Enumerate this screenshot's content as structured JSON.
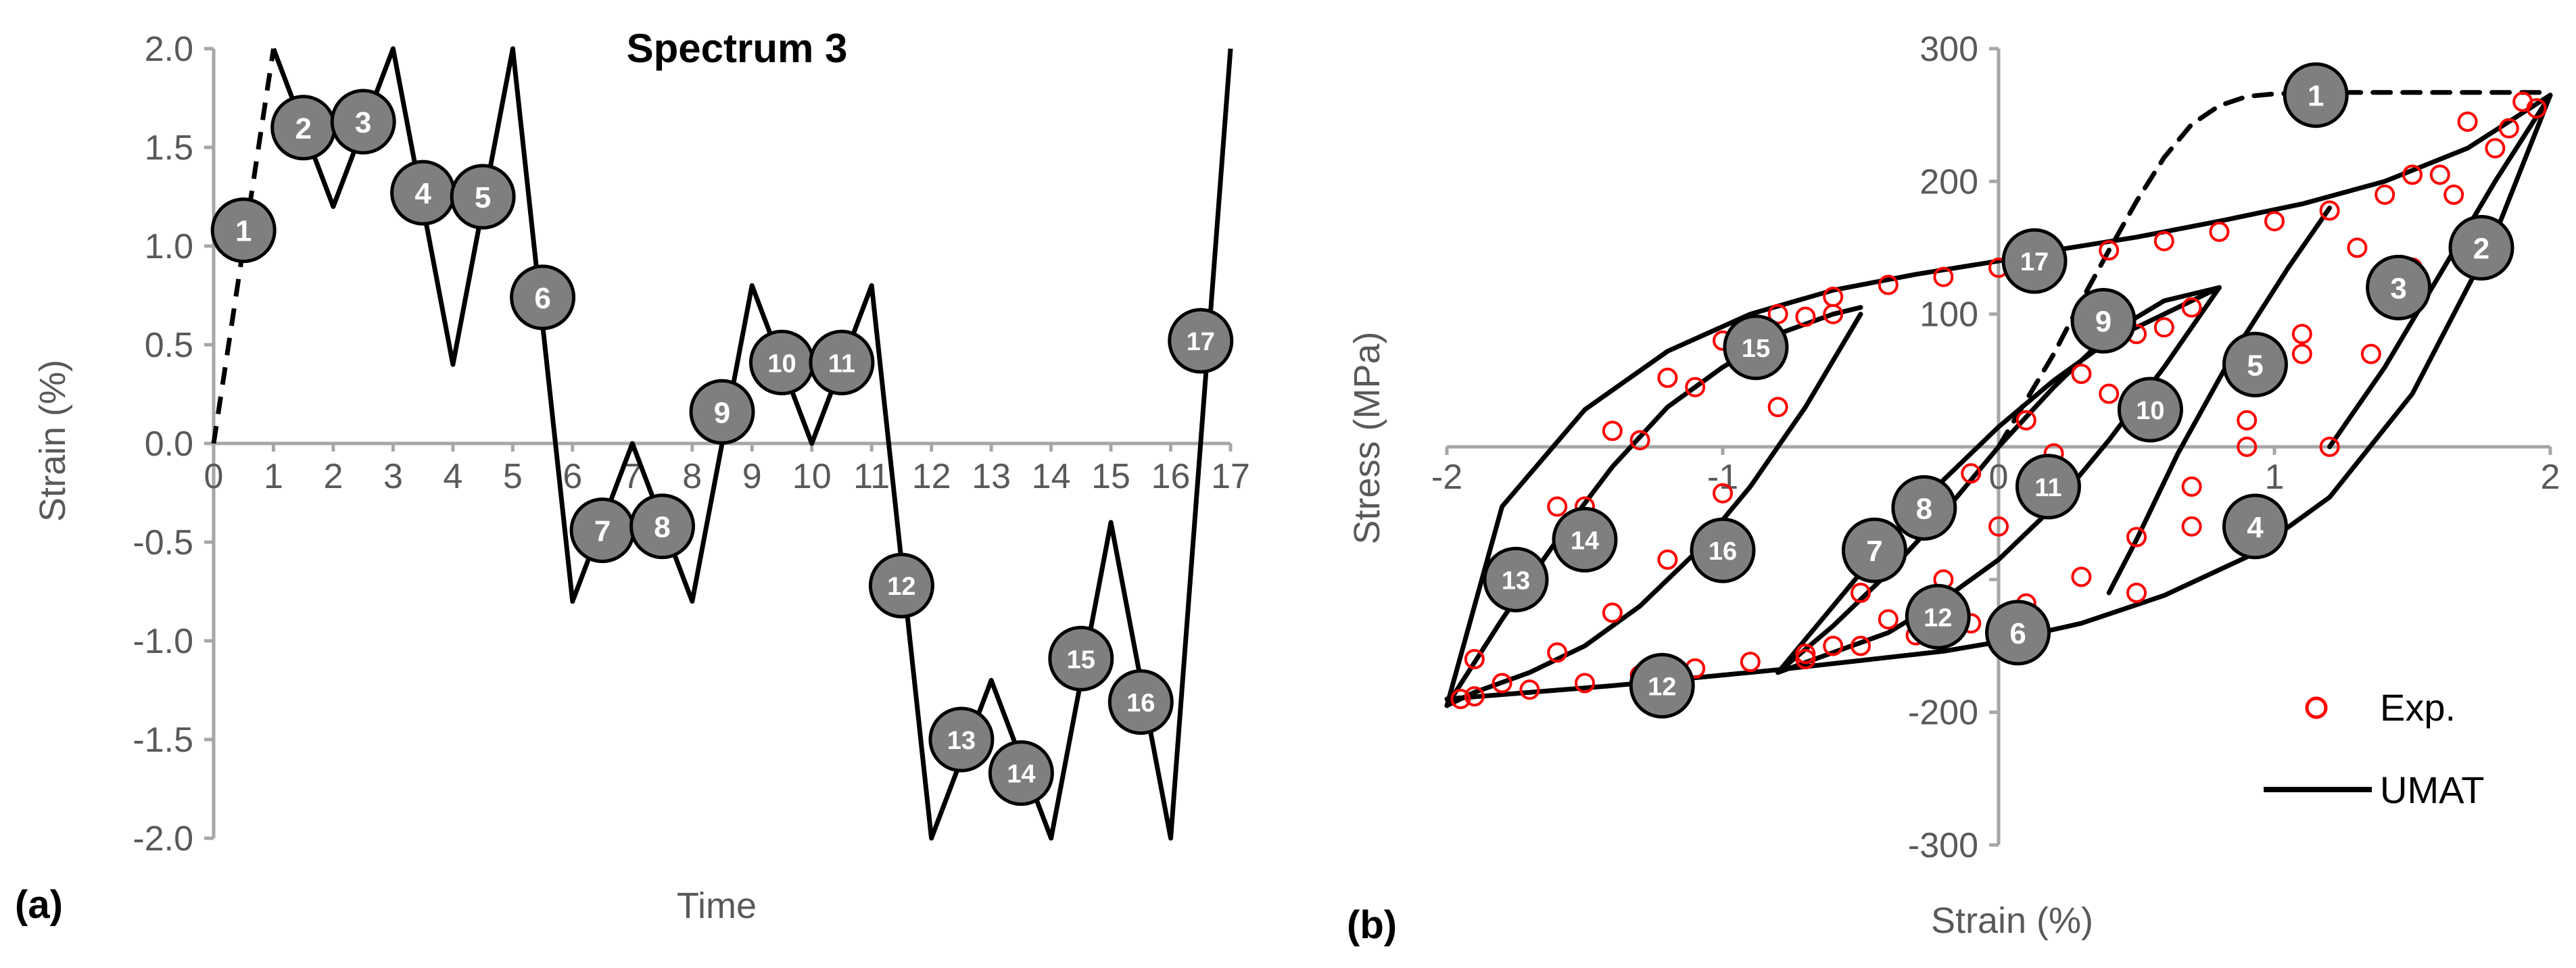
{
  "colors": {
    "axis": "#a6a6a6",
    "text": "#595959",
    "line": "#000000",
    "exp_marker": "#ff0000",
    "badge_fill": "#7f7f7f"
  },
  "chart_data": [
    {
      "panel_label": "(a)",
      "type": "line",
      "title": "Spectrum 3",
      "xlabel": "Time",
      "ylabel": "Strain (%)",
      "xlim": [
        0,
        17
      ],
      "ylim": [
        -2.0,
        2.0
      ],
      "x_ticks": [
        "0",
        "1",
        "2",
        "3",
        "4",
        "5",
        "6",
        "7",
        "8",
        "9",
        "10",
        "11",
        "12",
        "13",
        "14",
        "15",
        "16",
        "17"
      ],
      "y_ticks": [
        "2.0",
        "1.5",
        "1.0",
        "0.5",
        "0.0",
        "-0.5",
        "-1.0",
        "-1.5",
        "-2.0"
      ],
      "grid": false,
      "series": [
        {
          "style": "dashed",
          "x": [
            0,
            1
          ],
          "y": [
            0,
            2.0
          ]
        },
        {
          "style": "solid",
          "x": [
            1,
            2,
            3,
            4,
            5,
            6,
            7,
            8,
            9,
            10,
            11,
            12,
            13,
            14,
            15,
            16,
            17
          ],
          "y": [
            2.0,
            1.2,
            2.0,
            0.4,
            2.0,
            -0.8,
            0.0,
            -0.8,
            0.8,
            0.0,
            0.8,
            -2.0,
            -1.2,
            -2.0,
            -0.4,
            -2.0,
            2.0
          ]
        }
      ],
      "annotations": [
        {
          "label": "1",
          "x": 0.5,
          "y": 1.08
        },
        {
          "label": "2",
          "x": 1.5,
          "y": 1.6
        },
        {
          "label": "3",
          "x": 2.5,
          "y": 1.63
        },
        {
          "label": "4",
          "x": 3.5,
          "y": 1.27
        },
        {
          "label": "5",
          "x": 4.5,
          "y": 1.25
        },
        {
          "label": "6",
          "x": 5.5,
          "y": 0.74
        },
        {
          "label": "7",
          "x": 6.5,
          "y": -0.44
        },
        {
          "label": "8",
          "x": 7.5,
          "y": -0.42
        },
        {
          "label": "9",
          "x": 8.5,
          "y": 0.16
        },
        {
          "label": "10",
          "x": 9.5,
          "y": 0.41
        },
        {
          "label": "11",
          "x": 10.5,
          "y": 0.41
        },
        {
          "label": "12",
          "x": 11.5,
          "y": -0.72
        },
        {
          "label": "13",
          "x": 12.5,
          "y": -1.5
        },
        {
          "label": "14",
          "x": 13.5,
          "y": -1.67
        },
        {
          "label": "15",
          "x": 14.5,
          "y": -1.09
        },
        {
          "label": "16",
          "x": 15.5,
          "y": -1.31
        },
        {
          "label": "17",
          "x": 16.5,
          "y": 0.52
        }
      ]
    },
    {
      "panel_label": "(b)",
      "type": "scatter",
      "title": "",
      "xlabel": "Strain (%)",
      "ylabel": "Stress (MPa)",
      "xlim": [
        -2,
        2
      ],
      "ylim": [
        -300,
        300
      ],
      "x_ticks": [
        "-2",
        "-1",
        "0",
        "1",
        "2"
      ],
      "y_ticks": [
        "300",
        "200",
        "100",
        "-200",
        "-300"
      ],
      "grid": false,
      "legend": {
        "position": "bottom-right",
        "entries": [
          "Exp.",
          "UMAT"
        ]
      },
      "series": [
        {
          "name": "UMAT",
          "style": "dashed",
          "x": [
            0.0,
            0.1,
            0.2,
            0.3,
            0.4,
            0.5,
            0.6,
            0.7,
            0.8,
            0.9,
            1.0,
            1.2,
            1.5,
            1.8,
            2.0
          ],
          "y": [
            0,
            35,
            70,
            110,
            148,
            185,
            218,
            243,
            257,
            264,
            266,
            267,
            267,
            267,
            267
          ]
        },
        {
          "name": "UMAT",
          "style": "solid",
          "x": [
            2.0,
            1.7,
            1.4,
            1.1,
            0.8,
            0.5,
            0.2,
            0.0,
            -0.3,
            -0.6,
            -0.9,
            -1.2,
            -1.5,
            -1.8,
            -2.0
          ],
          "y": [
            265,
            225,
            200,
            183,
            170,
            158,
            148,
            140,
            130,
            118,
            100,
            72,
            28,
            -45,
            -195
          ]
        },
        {
          "name": "UMAT",
          "style": "solid",
          "x": [
            -2.0,
            -1.7,
            -1.4,
            -1.1,
            -0.8,
            -0.5,
            -0.2,
            0.0,
            0.3,
            0.6,
            0.9,
            1.2,
            1.5,
            1.8,
            2.0
          ],
          "y": [
            -190,
            -185,
            -180,
            -174,
            -168,
            -161,
            -154,
            -147,
            -133,
            -112,
            -83,
            -38,
            40,
            160,
            265
          ]
        },
        {
          "name": "UMAT",
          "style": "solid",
          "x": [
            1.2,
            1.4,
            1.6,
            1.8,
            2.0
          ],
          "y": [
            0,
            60,
            130,
            200,
            265
          ]
        },
        {
          "name": "UMAT",
          "style": "solid",
          "x": [
            0.4,
            0.5,
            0.65,
            0.85,
            1.05,
            1.2
          ],
          "y": [
            -110,
            -70,
            -5,
            70,
            135,
            180
          ]
        },
        {
          "name": "UMAT",
          "style": "solid",
          "x": [
            -0.8,
            -0.6,
            -0.4,
            -0.2,
            0.0,
            0.2,
            0.4,
            0.6,
            0.8
          ],
          "y": [
            -170,
            -120,
            -70,
            -25,
            15,
            50,
            80,
            100,
            120
          ]
        },
        {
          "name": "UMAT",
          "style": "solid",
          "x": [
            0.8,
            0.6,
            0.4,
            0.2,
            0.0,
            -0.2,
            -0.4,
            -0.6,
            -0.8
          ],
          "y": [
            120,
            60,
            5,
            -45,
            -85,
            -115,
            -140,
            -155,
            -170
          ]
        },
        {
          "name": "UMAT",
          "style": "solid",
          "x": [
            -0.8,
            -0.6,
            -0.4,
            -0.2,
            0.0,
            0.2,
            0.4,
            0.6,
            0.8
          ],
          "y": [
            -170,
            -135,
            -95,
            -50,
            0,
            45,
            85,
            110,
            120
          ]
        },
        {
          "name": "UMAT",
          "style": "solid",
          "x": [
            -2.0,
            -1.8,
            -1.6,
            -1.4,
            -1.2,
            -1.0,
            -0.8,
            -0.6,
            -0.5
          ],
          "y": [
            -195,
            -130,
            -70,
            -15,
            30,
            60,
            85,
            100,
            105
          ]
        },
        {
          "name": "UMAT",
          "style": "solid",
          "x": [
            -0.5,
            -0.7,
            -0.9,
            -1.1,
            -1.3,
            -1.5,
            -1.7,
            -1.9,
            -2.0
          ],
          "y": [
            100,
            30,
            -30,
            -80,
            -120,
            -150,
            -170,
            -185,
            -195
          ]
        },
        {
          "name": "Exp.",
          "style": "markers",
          "x": [
            1.95,
            1.8,
            1.6,
            1.4,
            1.2,
            1.0,
            0.8,
            0.6,
            0.4,
            0.2,
            0.0,
            -0.2,
            -0.4,
            -0.6,
            -0.8,
            -1.0,
            -1.2,
            -1.4,
            -1.6,
            -1.8,
            -1.95,
            -1.9,
            -1.7,
            -1.5,
            -1.3,
            -1.1,
            -0.9,
            -0.7,
            -0.5,
            -0.3,
            -0.1,
            0.1,
            0.3,
            0.5,
            0.7,
            0.9,
            1.1,
            1.3,
            1.5,
            1.7,
            1.9,
            1.2,
            1.35,
            1.5,
            1.65,
            1.85,
            0.5,
            0.7,
            0.9,
            1.1,
            -0.7,
            -0.5,
            -0.3,
            -0.1,
            0.1,
            0.3,
            0.5,
            0.7,
            0.6,
            0.4,
            0.2,
            0.0,
            -0.2,
            -0.4,
            -0.6,
            -1.9,
            -1.7,
            -1.5,
            -1.3,
            -1.1,
            -0.9,
            -0.7,
            -0.6,
            -0.8,
            -1.0,
            -1.2,
            -1.4,
            -1.6,
            -1.8
          ],
          "y": [
            255,
            225,
            205,
            190,
            178,
            170,
            162,
            155,
            148,
            142,
            135,
            128,
            122,
            113,
            100,
            80,
            52,
            12,
            -45,
            -110,
            -190,
            -188,
            -183,
            -178,
            -172,
            -167,
            -162,
            -156,
            -150,
            -142,
            -133,
            -118,
            -98,
            -68,
            -30,
            20,
            85,
            150,
            205,
            245,
            260,
            0,
            70,
            135,
            190,
            240,
            -110,
            -60,
            0,
            70,
            -160,
            -110,
            -60,
            -20,
            20,
            55,
            85,
            105,
            90,
            40,
            -5,
            -60,
            -100,
            -130,
            -150,
            -160,
            -100,
            -45,
            5,
            45,
            75,
            98,
            100,
            30,
            -35,
            -85,
            -125,
            -155,
            -178
          ]
        }
      ],
      "annotations": [
        {
          "label": "1",
          "x": 1.15,
          "y": 265
        },
        {
          "label": "2",
          "x": 1.75,
          "y": 150
        },
        {
          "label": "3",
          "x": 1.45,
          "y": 120
        },
        {
          "label": "4",
          "x": 0.93,
          "y": -60
        },
        {
          "label": "5",
          "x": 0.93,
          "y": 62
        },
        {
          "label": "6",
          "x": 0.07,
          "y": -140
        },
        {
          "label": "7",
          "x": -0.45,
          "y": -78
        },
        {
          "label": "8",
          "x": -0.27,
          "y": -46
        },
        {
          "label": "9",
          "x": 0.38,
          "y": 95
        },
        {
          "label": "10",
          "x": 0.55,
          "y": 28
        },
        {
          "label": "11",
          "x": 0.18,
          "y": -30
        },
        {
          "label": "12",
          "x": -0.22,
          "y": -128
        },
        {
          "label": "12",
          "x": -1.22,
          "y": -180
        },
        {
          "label": "13",
          "x": -1.75,
          "y": -100
        },
        {
          "label": "14",
          "x": -1.5,
          "y": -70
        },
        {
          "label": "15",
          "x": -0.88,
          "y": 75
        },
        {
          "label": "16",
          "x": -1.0,
          "y": -78
        },
        {
          "label": "17",
          "x": 0.13,
          "y": 140
        }
      ]
    }
  ]
}
